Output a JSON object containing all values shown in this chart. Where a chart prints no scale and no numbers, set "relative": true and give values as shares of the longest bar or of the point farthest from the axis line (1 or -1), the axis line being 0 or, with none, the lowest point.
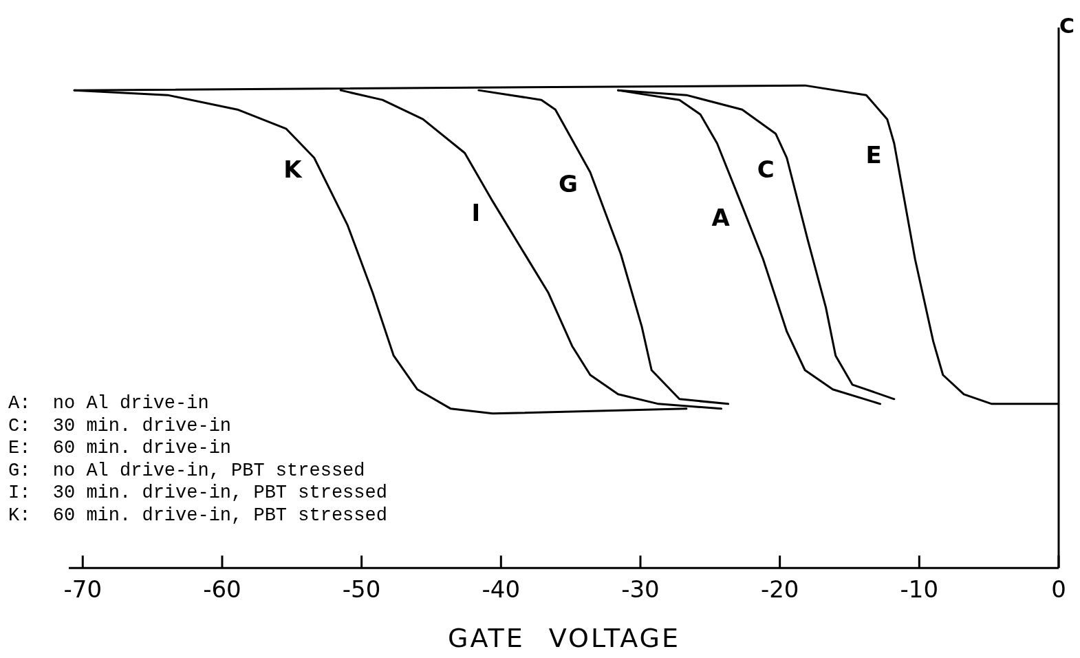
{
  "chart_data": {
    "type": "line",
    "relative": true,
    "xlabel": "GATE VOLTAGE",
    "ylabel": "C",
    "xlim": [
      -71,
      0
    ],
    "xticks": [
      -70,
      -60,
      -50,
      -40,
      -30,
      -20,
      -10,
      0
    ],
    "marker": "none",
    "line_style": "solid",
    "legend": false,
    "annotations": [
      "A:  no Al drive-in",
      "C:  30 min. drive-in",
      "E:  60 min. drive-in",
      "G:  no Al drive-in, PBT stressed",
      "I:  30 min. drive-in, PBT stressed",
      "K:  60 min. drive-in, PBT stressed"
    ],
    "series": [
      {
        "name": "K",
        "color": "#000000",
        "x": [
          -70.6,
          -63.9,
          -58.9,
          -55.4,
          -53.4,
          -51.0,
          -49.2,
          -47.7,
          -46.0,
          -43.6,
          -40.6,
          -26.7
        ],
        "values": [
          0.99,
          0.98,
          0.95,
          0.91,
          0.85,
          0.71,
          0.57,
          0.44,
          0.37,
          0.33,
          0.32,
          0.33
        ]
      },
      {
        "name": "I",
        "color": "#000000",
        "x": [
          -51.5,
          -48.5,
          -45.6,
          -42.6,
          -40.6,
          -36.6,
          -34.9,
          -33.6,
          -31.6,
          -28.7,
          -24.2
        ],
        "values": [
          0.99,
          0.97,
          0.93,
          0.86,
          0.76,
          0.57,
          0.46,
          0.4,
          0.36,
          0.34,
          0.33
        ]
      },
      {
        "name": "G",
        "color": "#000000",
        "x": [
          -41.6,
          -37.1,
          -36.1,
          -33.6,
          -31.4,
          -29.9,
          -29.2,
          -27.2,
          -23.7
        ],
        "values": [
          0.99,
          0.97,
          0.95,
          0.82,
          0.65,
          0.5,
          0.41,
          0.35,
          0.34
        ]
      },
      {
        "name": "A",
        "color": "#000000",
        "x": [
          -31.6,
          -27.2,
          -25.7,
          -24.5,
          -22.7,
          -21.2,
          -19.5,
          -18.2,
          -16.2,
          -12.8
        ],
        "values": [
          0.99,
          0.97,
          0.94,
          0.88,
          0.75,
          0.64,
          0.49,
          0.41,
          0.37,
          0.34
        ]
      },
      {
        "name": "C",
        "color": "#000000",
        "x": [
          -31.6,
          -26.7,
          -22.7,
          -20.3,
          -19.5,
          -18.0,
          -16.7,
          -16.0,
          -14.8,
          -11.8
        ],
        "values": [
          0.99,
          0.98,
          0.95,
          0.9,
          0.85,
          0.68,
          0.54,
          0.44,
          0.38,
          0.35
        ]
      },
      {
        "name": "E",
        "color": "#000000",
        "x": [
          -70.6,
          -18.2,
          -13.8,
          -12.3,
          -11.8,
          -10.3,
          -9.0,
          -8.3,
          -6.8,
          -4.8,
          0
        ],
        "values": [
          0.99,
          1.0,
          0.98,
          0.93,
          0.88,
          0.64,
          0.47,
          0.4,
          0.36,
          0.34,
          0.34
        ]
      }
    ]
  }
}
